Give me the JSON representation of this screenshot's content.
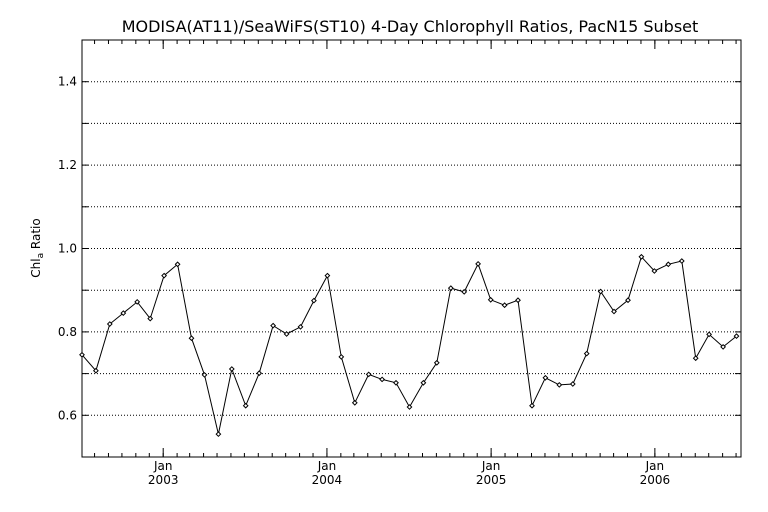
{
  "chart_data": {
    "type": "line",
    "title": "MODISA(AT11)/SeaWiFS(ST10) 4-Day Chlorophyll Ratios, PacN15 Subset",
    "ylabel": {
      "main": "Chl",
      "sub": "a",
      "rest": " Ratio"
    },
    "xlabel": "",
    "xlim": [
      "2002-07-04",
      "2006-07-12"
    ],
    "ylim": [
      0.5,
      1.5
    ],
    "yticks": [
      0.6,
      0.8,
      1.0,
      1.2,
      1.4
    ],
    "ytick_labels": [
      "0.6",
      "0.8",
      "1.0",
      "1.2",
      "1.4"
    ],
    "ygrid": [
      0.6,
      0.7,
      0.8,
      0.9,
      1.0,
      1.1,
      1.2,
      1.3,
      1.4
    ],
    "xticks": [
      {
        "date": "2003-01-01",
        "month": "Jan",
        "year": "2003"
      },
      {
        "date": "2004-01-01",
        "month": "Jan",
        "year": "2004"
      },
      {
        "date": "2005-01-01",
        "month": "Jan",
        "year": "2005"
      },
      {
        "date": "2006-01-01",
        "month": "Jan",
        "year": "2006"
      }
    ],
    "grid": "horizontal dotted",
    "series": [
      {
        "points": [
          [
            "2002-07-04",
            0.745
          ],
          [
            "2002-08-04",
            0.707
          ],
          [
            "2002-09-04",
            0.819
          ],
          [
            "2002-10-04",
            0.845
          ],
          [
            "2002-11-04",
            0.872
          ],
          [
            "2002-12-03",
            0.832
          ],
          [
            "2003-01-03",
            0.935
          ],
          [
            "2003-02-02",
            0.962
          ],
          [
            "2003-03-05",
            0.785
          ],
          [
            "2003-04-03",
            0.697
          ],
          [
            "2003-05-04",
            0.555
          ],
          [
            "2003-06-03",
            0.711
          ],
          [
            "2003-07-04",
            0.623
          ],
          [
            "2003-08-03",
            0.701
          ],
          [
            "2003-09-03",
            0.815
          ],
          [
            "2003-10-03",
            0.795
          ],
          [
            "2003-11-03",
            0.812
          ],
          [
            "2003-12-03",
            0.875
          ],
          [
            "2004-01-02",
            0.935
          ],
          [
            "2004-02-02",
            0.74
          ],
          [
            "2004-03-03",
            0.63
          ],
          [
            "2004-04-03",
            0.698
          ],
          [
            "2004-05-03",
            0.686
          ],
          [
            "2004-06-03",
            0.678
          ],
          [
            "2004-07-03",
            0.62
          ],
          [
            "2004-08-03",
            0.678
          ],
          [
            "2004-09-02",
            0.726
          ],
          [
            "2004-10-03",
            0.905
          ],
          [
            "2004-11-02",
            0.896
          ],
          [
            "2004-12-03",
            0.963
          ],
          [
            "2004-12-31",
            0.877
          ],
          [
            "2005-01-31",
            0.864
          ],
          [
            "2005-03-02",
            0.876
          ],
          [
            "2005-04-02",
            0.623
          ],
          [
            "2005-05-02",
            0.69
          ],
          [
            "2005-06-02",
            0.673
          ],
          [
            "2005-07-02",
            0.675
          ],
          [
            "2005-08-02",
            0.748
          ],
          [
            "2005-09-02",
            0.897
          ],
          [
            "2005-10-02",
            0.849
          ],
          [
            "2005-11-02",
            0.876
          ],
          [
            "2005-12-02",
            0.98
          ],
          [
            "2005-12-31",
            0.946
          ],
          [
            "2006-01-31",
            0.962
          ],
          [
            "2006-03-02",
            0.97
          ],
          [
            "2006-04-02",
            0.737
          ],
          [
            "2006-05-02",
            0.794
          ],
          [
            "2006-06-02",
            0.764
          ],
          [
            "2006-07-02",
            0.79
          ]
        ]
      }
    ]
  }
}
